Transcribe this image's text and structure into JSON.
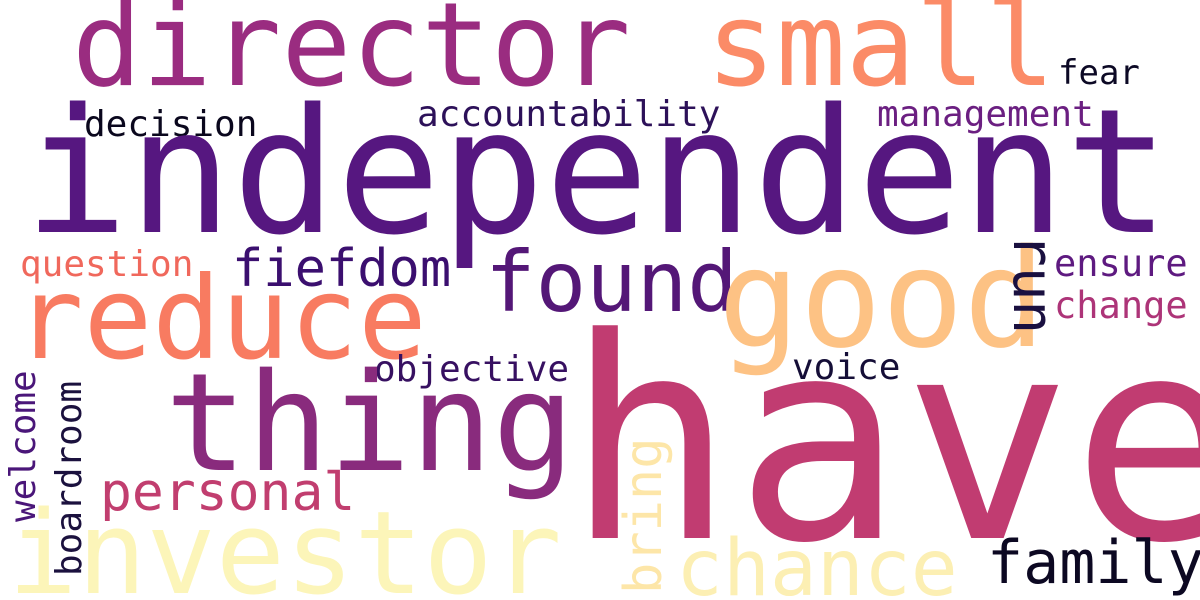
{
  "words": {
    "have": {
      "text": "have",
      "color": "#c13c71"
    },
    "independent": {
      "text": "independent",
      "color": "#561780"
    },
    "director": {
      "text": "director",
      "color": "#9a2c80"
    },
    "small": {
      "text": "small",
      "color": "#fb8b67"
    },
    "investor": {
      "text": "investor",
      "color": "#fcf5b9"
    },
    "good": {
      "text": "good",
      "color": "#fdc284"
    },
    "reduce": {
      "text": "reduce",
      "color": "#f87b61"
    },
    "thing": {
      "text": "thing",
      "color": "#892b7d"
    },
    "found": {
      "text": "found",
      "color": "#541777"
    },
    "chance": {
      "text": "chance",
      "color": "#fcefb3"
    },
    "family": {
      "text": "family",
      "color": "#0c0822"
    },
    "personal": {
      "text": "personal",
      "color": "#c13e6f"
    },
    "fiefdom": {
      "text": "fiefdom",
      "color": "#3b0f6f"
    },
    "accountability": {
      "text": "accountability",
      "color": "#2d1159"
    },
    "management": {
      "text": "management",
      "color": "#6b1f81"
    },
    "decision": {
      "text": "decision",
      "color": "#0a071d"
    },
    "question": {
      "text": "question",
      "color": "#f0685c"
    },
    "objective": {
      "text": "objective",
      "color": "#371061"
    },
    "voice": {
      "text": "voice",
      "color": "#150e37"
    },
    "fear": {
      "text": "fear",
      "color": "#0c0925"
    },
    "ensure": {
      "text": "ensure",
      "color": "#5e1a80"
    },
    "change": {
      "text": "change",
      "color": "#ad3478"
    },
    "run": {
      "text": "run",
      "color": "#1a1040"
    },
    "bring": {
      "text": "bring",
      "color": "#fde6a8"
    },
    "boardroom": {
      "text": "boardroom",
      "color": "#1b113e"
    },
    "welcome": {
      "text": "welcome",
      "color": "#4a1679"
    }
  }
}
